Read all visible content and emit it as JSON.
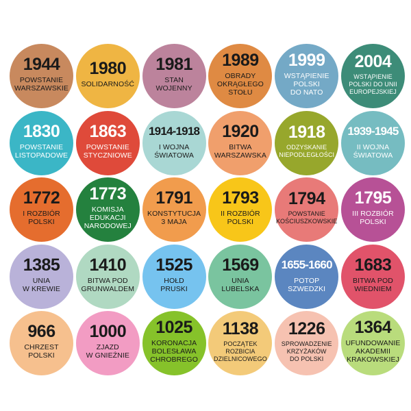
{
  "events": [
    {
      "year": "1944",
      "label": "Powstanie\nwarszawskie",
      "color": "#c8895e",
      "text": "#1a1a1a"
    },
    {
      "year": "1980",
      "label": "Solidarność",
      "color": "#efb543",
      "text": "#1a1a1a"
    },
    {
      "year": "1981",
      "label": "Stan\nwojenny",
      "color": "#bc839c",
      "text": "#1a1a1a"
    },
    {
      "year": "1989",
      "label": "Obrady\nokrągłego\nstołu",
      "color": "#df8a43",
      "text": "#1a1a1a"
    },
    {
      "year": "1999",
      "label": "Wstąpienie\nPolski\ndo NATO",
      "color": "#74a9c6",
      "text": "#ffffff"
    },
    {
      "year": "2004",
      "label": "Wstąpienie\nPolski do Unii\nEuropejskiej",
      "color": "#3d8c78",
      "text": "#ffffff"
    },
    {
      "year": "1830",
      "label": "Powstanie\nlistopadowe",
      "color": "#3bb6c6",
      "text": "#ffffff"
    },
    {
      "year": "1863",
      "label": "Powstanie\nstyczniowe",
      "color": "#df4a3a",
      "text": "#ffffff"
    },
    {
      "year": "1914-1918",
      "label": "I wojna\nświatowa",
      "color": "#a9d7d4",
      "text": "#1a1a1a"
    },
    {
      "year": "1920",
      "label": "Bitwa\nwarszawska",
      "color": "#f09f6c",
      "text": "#1a1a1a"
    },
    {
      "year": "1918",
      "label": "Odzyskanie\nniepodległości",
      "color": "#97a72c",
      "text": "#ffffff"
    },
    {
      "year": "1939-1945",
      "label": "II wojna\nświatowa",
      "color": "#76bcc1",
      "text": "#ffffff"
    },
    {
      "year": "1772",
      "label": "I rozbiór\nPolski",
      "color": "#e56d2e",
      "text": "#1a1a1a"
    },
    {
      "year": "1773",
      "label": "Komisja\nEdukacji\nNarodowej",
      "color": "#24813e",
      "text": "#ffffff"
    },
    {
      "year": "1791",
      "label": "Konstytucja\n3 maja",
      "color": "#f19c4d",
      "text": "#1a1a1a"
    },
    {
      "year": "1793",
      "label": "II rozbiór\nPolski",
      "color": "#f8c619",
      "text": "#1a1a1a"
    },
    {
      "year": "1794",
      "label": "Powstanie\nkościuszkowskie",
      "color": "#e87a78",
      "text": "#1a1a1a"
    },
    {
      "year": "1795",
      "label": "III rozbiór\nPolski",
      "color": "#b75196",
      "text": "#ffffff"
    },
    {
      "year": "1385",
      "label": "Unia\nw Krewie",
      "color": "#b9b2d9",
      "text": "#1a1a1a"
    },
    {
      "year": "1410",
      "label": "Bitwa pod\nGrunwaldem",
      "color": "#b0d9c2",
      "text": "#1a1a1a"
    },
    {
      "year": "1525",
      "label": "Hołd\npruski",
      "color": "#76c3ef",
      "text": "#1a1a1a"
    },
    {
      "year": "1569",
      "label": "Unia\nlubelska",
      "color": "#7ac49f",
      "text": "#1a1a1a"
    },
    {
      "year": "1655-1660",
      "label": "Potop\nszwedzki",
      "color": "#5b86c0",
      "text": "#ffffff"
    },
    {
      "year": "1683",
      "label": "Bitwa pod\nWiedniem",
      "color": "#e1536a",
      "text": "#1a1a1a"
    },
    {
      "year": "966",
      "label": "Chrzest\nPolski",
      "color": "#f6c08e",
      "text": "#1a1a1a"
    },
    {
      "year": "1000",
      "label": "Zjazd\nw Gnieźnie",
      "color": "#f29cc3",
      "text": "#1a1a1a"
    },
    {
      "year": "1025",
      "label": "Koronacja\nBolesława\nChrobrego",
      "color": "#86c22a",
      "text": "#1a1a1a"
    },
    {
      "year": "1138",
      "label": "Początek\nrozbicia\ndzielnicowego",
      "color": "#f3ca79",
      "text": "#1a1a1a"
    },
    {
      "year": "1226",
      "label": "Sprowadzenie\nKrzyżaków\ndo Polski",
      "color": "#f6c2b1",
      "text": "#1a1a1a"
    },
    {
      "year": "1364",
      "label": "Ufundowanie\nAkademii\nKrakowskiej",
      "color": "#b9dc7c",
      "text": "#1a1a1a"
    }
  ]
}
